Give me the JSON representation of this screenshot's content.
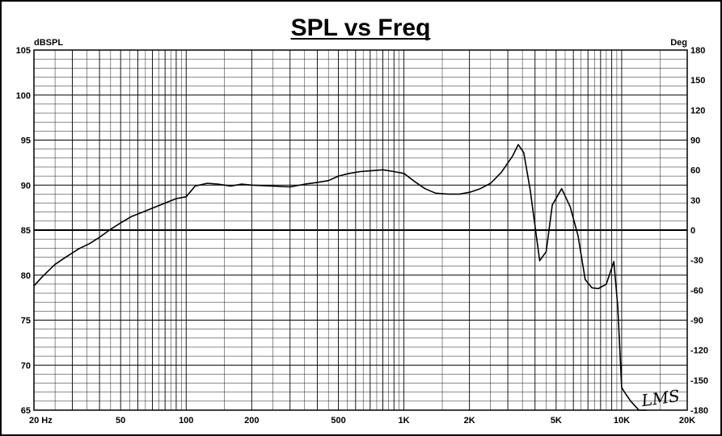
{
  "chart_data": {
    "type": "line",
    "title": "SPL vs Freq",
    "ylabel_left": "dBSPL",
    "ylabel_right": "Deg",
    "x_scale": "log",
    "xlim": [
      20,
      20000
    ],
    "ylim": [
      65,
      105
    ],
    "ylim_right": [
      -180,
      180
    ],
    "grid": true,
    "x_ticks": [
      {
        "value": 20,
        "label": "20  Hz"
      },
      {
        "value": 50,
        "label": "50"
      },
      {
        "value": 100,
        "label": "100"
      },
      {
        "value": 200,
        "label": "200"
      },
      {
        "value": 500,
        "label": "500"
      },
      {
        "value": 1000,
        "label": "1K"
      },
      {
        "value": 2000,
        "label": "2K"
      },
      {
        "value": 5000,
        "label": "5K"
      },
      {
        "value": 10000,
        "label": "10K"
      },
      {
        "value": 20000,
        "label": "20K"
      }
    ],
    "y_ticks_left": [
      105,
      100,
      95,
      90,
      85,
      80,
      75,
      70,
      65
    ],
    "y_ticks_right": [
      180,
      150,
      120,
      90,
      60,
      30,
      0,
      -30,
      -60,
      -90,
      -120,
      -150,
      -180
    ],
    "series": [
      {
        "x": [
          20,
          22,
          25,
          28,
          32,
          36,
          40,
          45,
          50,
          56,
          63,
          71,
          80,
          90,
          100,
          110,
          125,
          140,
          160,
          180,
          200,
          250,
          300,
          350,
          400,
          450,
          500,
          560,
          630,
          710,
          800,
          900,
          1000,
          1120,
          1250,
          1400,
          1600,
          1800,
          2000,
          2240,
          2500,
          2800,
          3150,
          3350,
          3550,
          3800,
          4200,
          4500,
          4800,
          5300,
          5800,
          6300,
          6800,
          7300,
          7800,
          8500,
          9200,
          9600,
          10000,
          10500,
          11000,
          12000,
          13000
        ],
        "y": [
          78.8,
          79.9,
          81.2,
          82.0,
          82.9,
          83.5,
          84.2,
          85.1,
          85.8,
          86.5,
          87.0,
          87.5,
          88.0,
          88.5,
          88.7,
          89.9,
          90.2,
          90.1,
          89.9,
          90.1,
          90.0,
          89.9,
          89.8,
          90.1,
          90.3,
          90.5,
          91.0,
          91.3,
          91.5,
          91.6,
          91.7,
          91.5,
          91.3,
          90.4,
          89.6,
          89.1,
          89.0,
          89.0,
          89.2,
          89.6,
          90.2,
          91.4,
          93.2,
          94.5,
          93.6,
          89.5,
          81.6,
          82.6,
          87.8,
          89.6,
          87.6,
          84.4,
          79.5,
          78.6,
          78.5,
          79.0,
          81.5,
          76.5,
          67.5,
          66.7,
          66.0,
          65.0,
          64.5
        ]
      }
    ]
  },
  "signature": "LMS"
}
